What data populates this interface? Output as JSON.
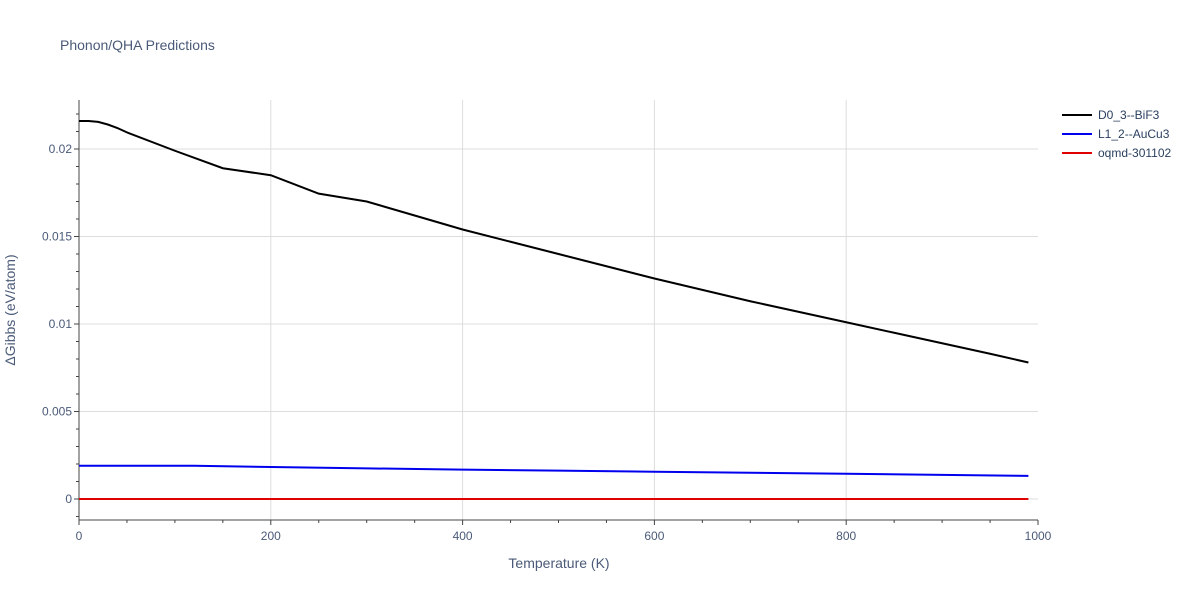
{
  "chart_data": {
    "type": "line",
    "title": "Phonon/QHA Predictions",
    "xlabel": "Temperature (K)",
    "ylabel": "ΔGibbs (eV/atom)",
    "xlim": [
      0,
      1000
    ],
    "ylim": [
      -0.0012,
      0.0228
    ],
    "xticks": [
      0,
      200,
      400,
      600,
      800,
      1000
    ],
    "xtick_labels": [
      "0",
      "200",
      "400",
      "600",
      "800",
      "1000"
    ],
    "yticks": [
      0,
      0.005,
      0.01,
      0.015,
      0.02
    ],
    "ytick_labels": [
      "0",
      "0.005",
      "0.01",
      "0.015",
      "0.02"
    ],
    "grid": true,
    "legend_position": "top-right",
    "series": [
      {
        "name": "D0_3--BiF3",
        "color": "#000000",
        "x": [
          0,
          10,
          20,
          30,
          40,
          50,
          100,
          150,
          200,
          250,
          300,
          350,
          400,
          450,
          500,
          550,
          600,
          650,
          700,
          750,
          800,
          850,
          900,
          950,
          990
        ],
        "y": [
          0.0216,
          0.0216,
          0.02155,
          0.0214,
          0.0212,
          0.02095,
          0.0199,
          0.0189,
          0.0185,
          0.01745,
          0.017,
          0.0162,
          0.0154,
          0.0147,
          0.014,
          0.0133,
          0.0126,
          0.01195,
          0.0113,
          0.0107,
          0.0101,
          0.0095,
          0.0089,
          0.0083,
          0.0078
        ]
      },
      {
        "name": "L1_2--AuCu3",
        "color": "#0000ee",
        "x": [
          0,
          60,
          120,
          200,
          300,
          400,
          500,
          600,
          700,
          800,
          900,
          990
        ],
        "y": [
          0.0019,
          0.0019,
          0.0019,
          0.00183,
          0.00175,
          0.00168,
          0.00162,
          0.00156,
          0.0015,
          0.00144,
          0.00138,
          0.00132
        ]
      },
      {
        "name": "oqmd-301102",
        "color": "#e00000",
        "x": [
          0,
          990
        ],
        "y": [
          0,
          0
        ]
      }
    ]
  }
}
